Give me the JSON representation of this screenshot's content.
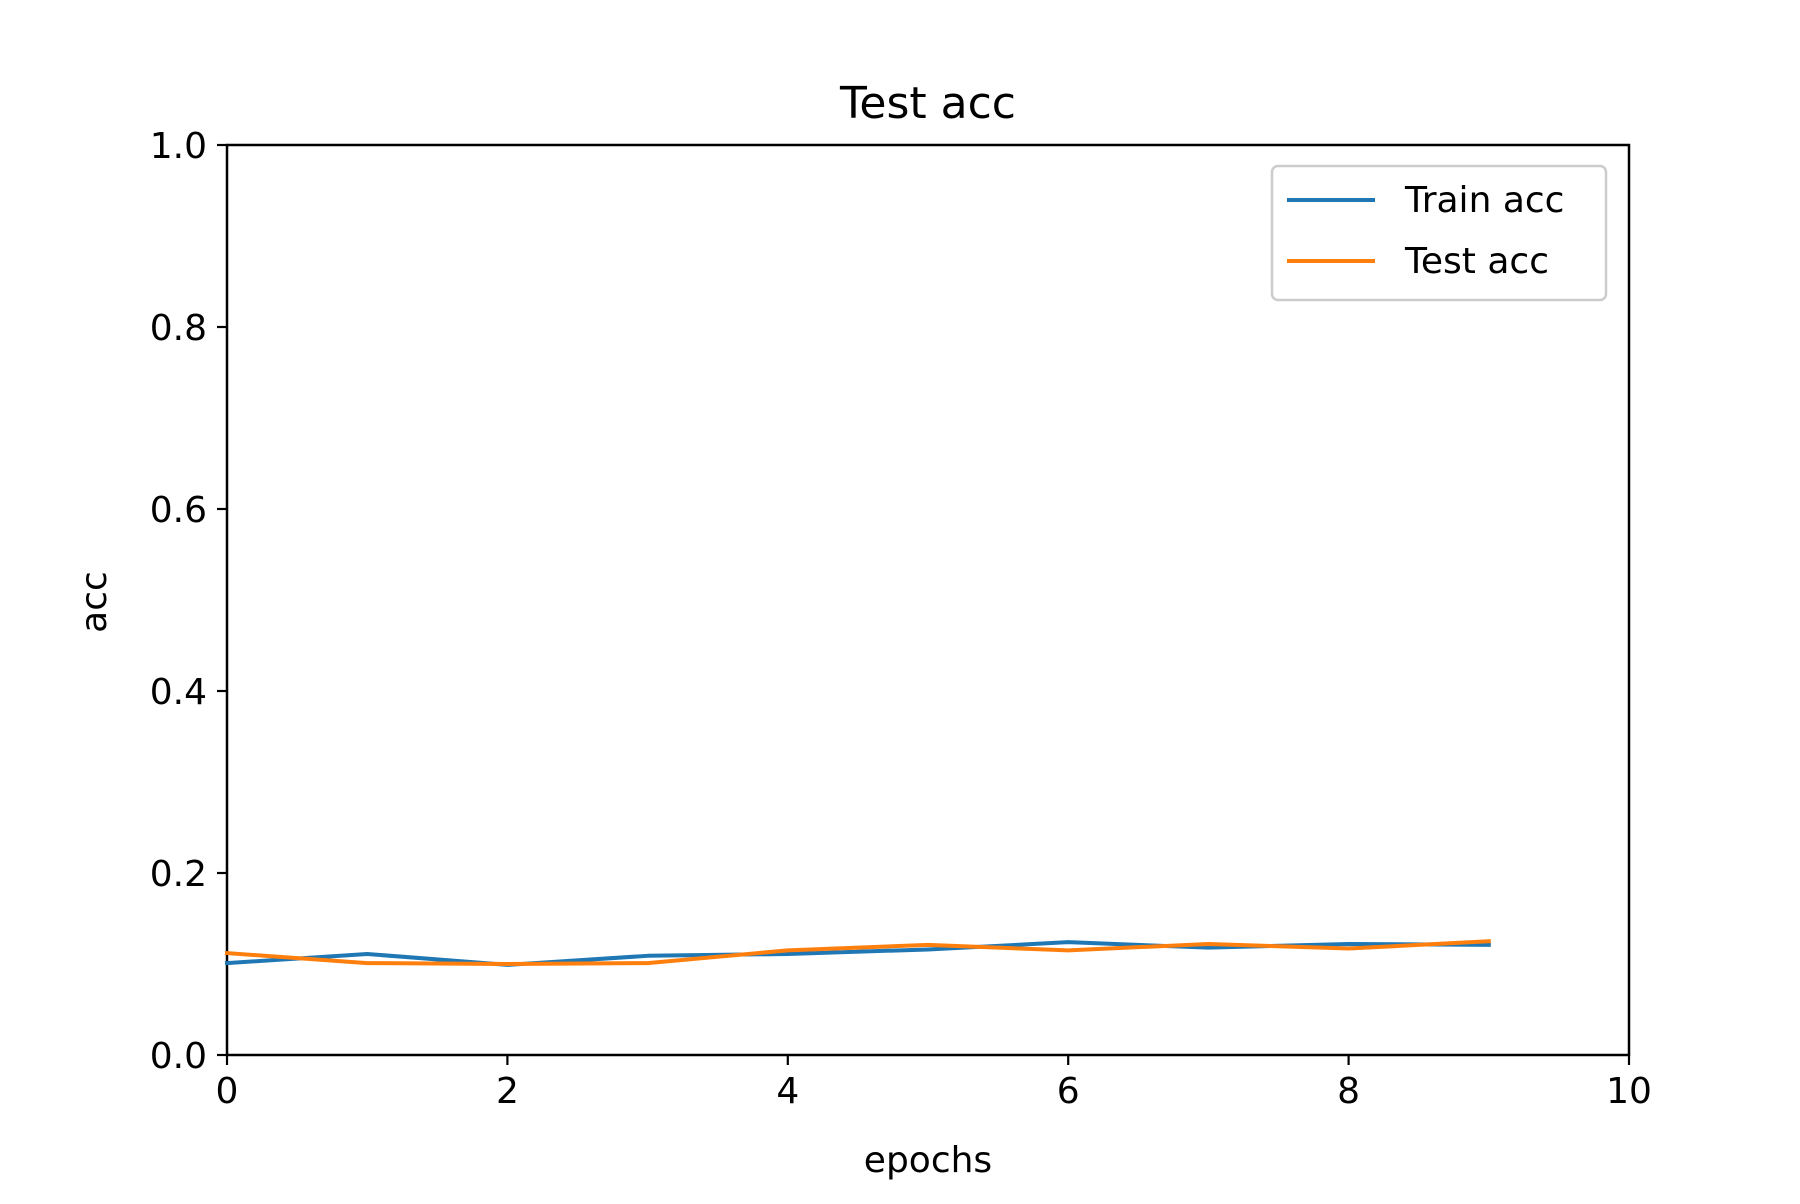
{
  "chart_data": {
    "type": "line",
    "title": "Test acc",
    "xlabel": "epochs",
    "ylabel": "acc",
    "xlim": [
      0,
      10
    ],
    "ylim": [
      0.0,
      1.0
    ],
    "x_ticks": [
      0,
      2,
      4,
      6,
      8,
      10
    ],
    "x_tick_labels": [
      "0",
      "2",
      "4",
      "6",
      "8",
      "10"
    ],
    "y_ticks": [
      0.0,
      0.2,
      0.4,
      0.6,
      0.8,
      1.0
    ],
    "y_tick_labels": [
      "0.0",
      "0.2",
      "0.4",
      "0.6",
      "0.8",
      "1.0"
    ],
    "grid": false,
    "legend_position": "top-right",
    "x": [
      0,
      1,
      2,
      3,
      4,
      5,
      6,
      7,
      8,
      9
    ],
    "series": [
      {
        "name": "Train acc",
        "color": "#1f77b4",
        "values": [
          0.101,
          0.111,
          0.099,
          0.109,
          0.111,
          0.116,
          0.124,
          0.118,
          0.122,
          0.121
        ]
      },
      {
        "name": "Test acc",
        "color": "#ff7f0e",
        "values": [
          0.112,
          0.101,
          0.1,
          0.101,
          0.115,
          0.121,
          0.115,
          0.122,
          0.117,
          0.125
        ]
      }
    ]
  }
}
